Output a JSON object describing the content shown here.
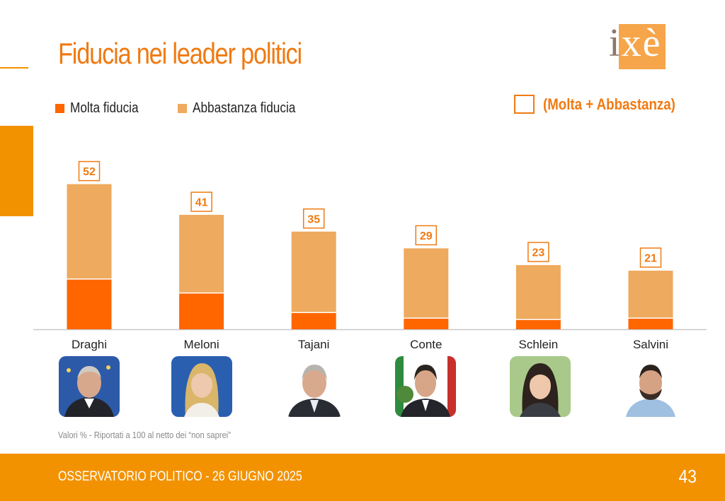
{
  "title": "Fiducia nei leader politici",
  "logo_text": "ixè",
  "colors": {
    "accent": "#f39200",
    "title": "#f07a12",
    "molta": "#ff6600",
    "abbastanza": "#eeaa5e",
    "total_label": "#f07a12"
  },
  "legend": {
    "molta": "Molta fiducia",
    "abbastanza": "Abbastanza fiducia",
    "total": "(Molta + Abbastanza)"
  },
  "chart_data": {
    "type": "bar",
    "stacked": true,
    "categories": [
      "Draghi",
      "Meloni",
      "Tajani",
      "Conte",
      "Schlein",
      "Salvini"
    ],
    "series": [
      {
        "name": "Molta fiducia",
        "values": [
          18,
          13,
          6,
          4,
          3.5,
          4
        ]
      },
      {
        "name": "Abbastanza fiducia",
        "values": [
          34,
          28,
          29,
          25,
          19.5,
          17
        ]
      }
    ],
    "totals": [
      52,
      41,
      35,
      29,
      23,
      21
    ],
    "ylim": [
      0,
      60
    ],
    "grid": false,
    "legend_position": "top-left"
  },
  "photo_icons": [
    "draghi-photo-icon",
    "meloni-photo-icon",
    "tajani-photo-icon",
    "conte-photo-icon",
    "schlein-photo-icon",
    "salvini-photo-icon"
  ],
  "note": "Valori % - Riportati a 100 al netto dei “non saprei”",
  "footer": {
    "text": "OSSERVATORIO POLITICO - 26 GIUGNO 2025",
    "page_number": "43"
  }
}
